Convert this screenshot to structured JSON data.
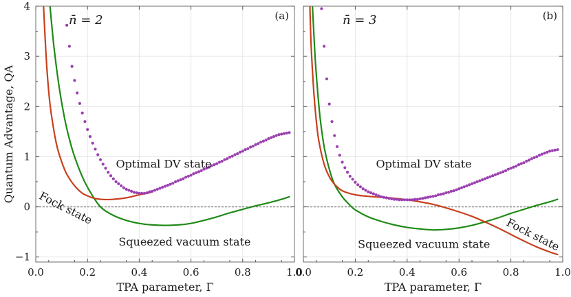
{
  "chart_data": [
    {
      "panel": "(a)",
      "type": "line",
      "nbar_label": "n̄ = 2",
      "xlabel": "TPA parameter, Γ",
      "ylabel": "Quantum Advantage, QA",
      "xlim": [
        0,
        1.0
      ],
      "ylim": [
        -1.1,
        4.0
      ],
      "xticks": [
        0.0,
        0.2,
        0.4,
        0.6,
        0.8,
        1.0
      ],
      "yticks": [
        -1,
        0,
        1,
        2,
        3,
        4
      ],
      "xtick_labels": [
        "0.0",
        "0.2",
        "0.4",
        "0.6",
        "0.8",
        "1.0"
      ],
      "ytick_labels": [
        "−1",
        "0",
        "1",
        "2",
        "3",
        "4"
      ],
      "grid": true,
      "series": [
        {
          "name": "Fock state",
          "label": "Fock state",
          "color": "#c8401d",
          "style": "line",
          "x": [
            0.03,
            0.04,
            0.05,
            0.06,
            0.08,
            0.1,
            0.12,
            0.15,
            0.18,
            0.2,
            0.22,
            0.25,
            0.28,
            0.3,
            0.35,
            0.4,
            0.43,
            0.45
          ],
          "y": [
            4.0,
            3.0,
            2.3,
            1.85,
            1.25,
            0.9,
            0.65,
            0.42,
            0.27,
            0.22,
            0.18,
            0.15,
            0.145,
            0.15,
            0.18,
            0.24,
            0.27,
            0.3
          ]
        },
        {
          "name": "Squeezed vacuum state",
          "label": "Squeezed vacuum state",
          "color": "#1f8a16",
          "style": "line",
          "x": [
            0.055,
            0.07,
            0.09,
            0.11,
            0.13,
            0.15,
            0.18,
            0.21,
            0.25,
            0.3,
            0.35,
            0.4,
            0.45,
            0.5,
            0.55,
            0.6,
            0.65,
            0.7,
            0.75,
            0.8,
            0.85,
            0.9,
            0.95,
            0.98
          ],
          "y": [
            4.0,
            3.2,
            2.4,
            1.8,
            1.35,
            1.0,
            0.6,
            0.3,
            0.0,
            -0.17,
            -0.27,
            -0.33,
            -0.36,
            -0.37,
            -0.36,
            -0.33,
            -0.27,
            -0.2,
            -0.12,
            -0.05,
            0.02,
            0.08,
            0.15,
            0.2
          ]
        },
        {
          "name": "Optimal DV state",
          "label": "Optimal DV state",
          "color": "#9b3fb0",
          "style": "dots",
          "x": [
            0.12,
            0.13,
            0.14,
            0.15,
            0.16,
            0.17,
            0.18,
            0.19,
            0.2,
            0.21,
            0.22,
            0.23,
            0.24,
            0.25,
            0.26,
            0.27,
            0.28,
            0.29,
            0.3,
            0.31,
            0.32,
            0.33,
            0.34,
            0.35,
            0.36,
            0.37,
            0.38,
            0.39,
            0.4,
            0.41,
            0.42,
            0.43,
            0.44,
            0.45,
            0.46,
            0.47,
            0.48,
            0.49,
            0.5,
            0.51,
            0.52,
            0.53,
            0.54,
            0.55,
            0.56,
            0.57,
            0.58,
            0.59,
            0.6,
            0.61,
            0.62,
            0.63,
            0.64,
            0.65,
            0.66,
            0.67,
            0.68,
            0.69,
            0.7,
            0.71,
            0.72,
            0.73,
            0.74,
            0.75,
            0.76,
            0.77,
            0.78,
            0.79,
            0.8,
            0.81,
            0.82,
            0.83,
            0.84,
            0.85,
            0.86,
            0.87,
            0.88,
            0.89,
            0.9,
            0.91,
            0.92,
            0.93,
            0.94,
            0.95,
            0.96,
            0.97,
            0.98
          ],
          "y": [
            3.62,
            3.2,
            2.8,
            2.52,
            2.27,
            2.06,
            1.87,
            1.7,
            1.54,
            1.4,
            1.27,
            1.15,
            1.04,
            0.94,
            0.85,
            0.77,
            0.69,
            0.62,
            0.56,
            0.5,
            0.46,
            0.42,
            0.38,
            0.35,
            0.33,
            0.31,
            0.29,
            0.28,
            0.27,
            0.27,
            0.27,
            0.28,
            0.3,
            0.31,
            0.33,
            0.35,
            0.37,
            0.39,
            0.41,
            0.43,
            0.45,
            0.47,
            0.5,
            0.52,
            0.54,
            0.56,
            0.59,
            0.61,
            0.63,
            0.66,
            0.68,
            0.7,
            0.72,
            0.75,
            0.77,
            0.79,
            0.82,
            0.84,
            0.86,
            0.89,
            0.91,
            0.94,
            0.96,
            0.99,
            1.01,
            1.04,
            1.06,
            1.09,
            1.11,
            1.14,
            1.16,
            1.19,
            1.21,
            1.24,
            1.26,
            1.29,
            1.31,
            1.33,
            1.36,
            1.38,
            1.4,
            1.42,
            1.44,
            1.45,
            1.46,
            1.47,
            1.48
          ]
        }
      ]
    },
    {
      "panel": "(b)",
      "type": "line",
      "nbar_label": "n̄ = 3",
      "xlabel": "TPA parameter, Γ",
      "ylabel": "",
      "xlim": [
        0,
        1.0
      ],
      "ylim": [
        -1.1,
        4.0
      ],
      "xticks": [
        0.0,
        0.2,
        0.4,
        0.6,
        0.8,
        1.0
      ],
      "yticks": [
        -1,
        0,
        1,
        2,
        3,
        4
      ],
      "xtick_labels": [
        "0.0",
        "0.2",
        "0.4",
        "0.6",
        "0.8",
        "1.0"
      ],
      "grid": true,
      "series": [
        {
          "name": "Fock state",
          "label": "Fock state",
          "color": "#c8401d",
          "style": "line",
          "x": [
            0.025,
            0.03,
            0.04,
            0.05,
            0.06,
            0.08,
            0.1,
            0.12,
            0.15,
            0.2,
            0.25,
            0.3,
            0.35,
            0.4,
            0.45,
            0.5,
            0.55,
            0.6,
            0.65,
            0.7,
            0.75,
            0.8,
            0.85,
            0.9,
            0.95,
            0.98
          ],
          "y": [
            4.0,
            3.2,
            2.3,
            1.7,
            1.3,
            0.85,
            0.6,
            0.45,
            0.32,
            0.24,
            0.21,
            0.19,
            0.17,
            0.14,
            0.1,
            0.05,
            -0.02,
            -0.1,
            -0.19,
            -0.3,
            -0.42,
            -0.55,
            -0.68,
            -0.8,
            -0.9,
            -0.95
          ]
        },
        {
          "name": "Squeezed vacuum state",
          "label": "Squeezed vacuum state",
          "color": "#1f8a16",
          "style": "line",
          "x": [
            0.035,
            0.045,
            0.055,
            0.065,
            0.08,
            0.1,
            0.12,
            0.15,
            0.18,
            0.2,
            0.25,
            0.3,
            0.35,
            0.4,
            0.45,
            0.5,
            0.55,
            0.6,
            0.65,
            0.7,
            0.75,
            0.8,
            0.85,
            0.9,
            0.95,
            0.98
          ],
          "y": [
            4.0,
            3.0,
            2.3,
            1.75,
            1.2,
            0.75,
            0.45,
            0.2,
            0.03,
            -0.06,
            -0.2,
            -0.29,
            -0.36,
            -0.41,
            -0.44,
            -0.46,
            -0.45,
            -0.42,
            -0.37,
            -0.3,
            -0.22,
            -0.13,
            -0.05,
            0.03,
            0.1,
            0.15
          ]
        },
        {
          "name": "Optimal DV state",
          "label": "Optimal DV state",
          "color": "#9b3fb0",
          "style": "dots",
          "x": [
            0.07,
            0.08,
            0.09,
            0.1,
            0.11,
            0.12,
            0.13,
            0.14,
            0.15,
            0.16,
            0.17,
            0.18,
            0.19,
            0.2,
            0.21,
            0.22,
            0.23,
            0.24,
            0.25,
            0.26,
            0.27,
            0.28,
            0.29,
            0.3,
            0.31,
            0.32,
            0.33,
            0.34,
            0.35,
            0.36,
            0.37,
            0.38,
            0.39,
            0.4,
            0.41,
            0.42,
            0.43,
            0.44,
            0.45,
            0.46,
            0.47,
            0.48,
            0.49,
            0.5,
            0.51,
            0.52,
            0.53,
            0.54,
            0.55,
            0.56,
            0.57,
            0.58,
            0.59,
            0.6,
            0.61,
            0.62,
            0.63,
            0.64,
            0.65,
            0.66,
            0.67,
            0.68,
            0.69,
            0.7,
            0.71,
            0.72,
            0.73,
            0.74,
            0.75,
            0.76,
            0.77,
            0.78,
            0.79,
            0.8,
            0.81,
            0.82,
            0.83,
            0.84,
            0.85,
            0.86,
            0.87,
            0.88,
            0.89,
            0.9,
            0.91,
            0.92,
            0.93,
            0.94,
            0.95,
            0.96,
            0.97,
            0.98
          ],
          "y": [
            3.95,
            3.2,
            2.55,
            2.05,
            1.7,
            1.42,
            1.2,
            1.03,
            0.89,
            0.78,
            0.69,
            0.61,
            0.55,
            0.49,
            0.44,
            0.4,
            0.36,
            0.33,
            0.3,
            0.28,
            0.26,
            0.24,
            0.22,
            0.2,
            0.19,
            0.18,
            0.17,
            0.16,
            0.15,
            0.15,
            0.14,
            0.14,
            0.14,
            0.14,
            0.14,
            0.14,
            0.15,
            0.15,
            0.16,
            0.17,
            0.18,
            0.19,
            0.2,
            0.21,
            0.22,
            0.24,
            0.25,
            0.26,
            0.28,
            0.29,
            0.31,
            0.32,
            0.34,
            0.36,
            0.38,
            0.4,
            0.42,
            0.44,
            0.46,
            0.48,
            0.5,
            0.52,
            0.54,
            0.56,
            0.58,
            0.6,
            0.62,
            0.64,
            0.66,
            0.68,
            0.7,
            0.72,
            0.75,
            0.77,
            0.79,
            0.81,
            0.84,
            0.86,
            0.88,
            0.91,
            0.93,
            0.96,
            0.98,
            1.0,
            1.03,
            1.05,
            1.07,
            1.09,
            1.11,
            1.12,
            1.13,
            1.14
          ]
        }
      ]
    }
  ]
}
